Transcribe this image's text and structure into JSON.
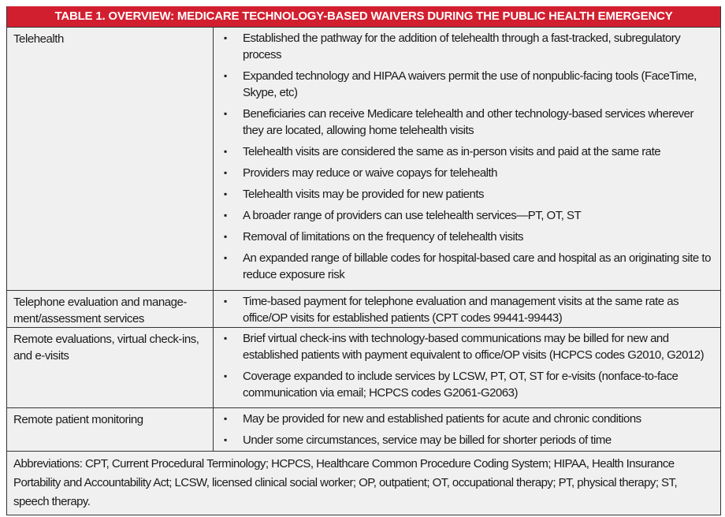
{
  "title": "TABLE 1.  OVERVIEW: MEDICARE TECHNOLOGY-BASED WAIVERS DURING THE PUBLIC HEALTH EMERGENCY",
  "colors": {
    "header_bg": "#d21f2f",
    "cell_bg": "#f0f0f0"
  },
  "rows": [
    {
      "category": "Telehealth",
      "items": [
        "Established the pathway for the addition of telehealth through a fast-tracked, subregulatory process",
        "Expanded technology and HIPAA waivers permit the use of nonpublic-facing tools (FaceTime, Skype, etc)",
        "Beneficiaries can receive Medicare telehealth and other technology-based services wherever they are located, allowing home telehealth visits",
        "Telehealth visits are considered the same as in-person visits and paid at the same rate",
        "Providers may reduce or waive copays for telehealth",
        "Telehealth visits may be provided for new patients",
        "A broader range of providers can use telehealth services—PT, OT, ST",
        "Removal of limitations on the frequency of telehealth visits",
        "An expanded range of billable codes for hospital-based care and hospital as an originating site to reduce exposure risk"
      ]
    },
    {
      "category": "Telephone evaluation and manage-ment/assessment services",
      "items": [
        "Time-based payment for telephone evaluation and management visits at the same rate as office/OP visits for established patients (CPT codes 99441-99443)"
      ]
    },
    {
      "category": "Remote evaluations, virtual check-ins, and e-visits",
      "items": [
        "Brief virtual check-ins with technology-based communications may be billed for new and established patients with payment equivalent to office/OP visits (HCPCS codes G2010, G2012)",
        "Coverage expanded to include services by LCSW, PT, OT, ST for e-visits (nonface-to-face communication via email; HCPCS codes G2061-G2063)"
      ]
    },
    {
      "category": "Remote patient monitoring",
      "items": [
        "May be provided for new and established patients for acute and chronic conditions",
        "Under some circumstances, service may be billed for shorter periods of time"
      ]
    }
  ],
  "bullet": "▪",
  "abbreviations": "Abbreviations: CPT, Current Procedural Terminology; HCPCS, Healthcare Common Procedure Coding System; HIPAA, Health Insurance Portability and Accountability Act; LCSW, licensed clinical social worker; OP, outpatient; OT, occupational therapy; PT, physical therapy; ST, speech therapy."
}
